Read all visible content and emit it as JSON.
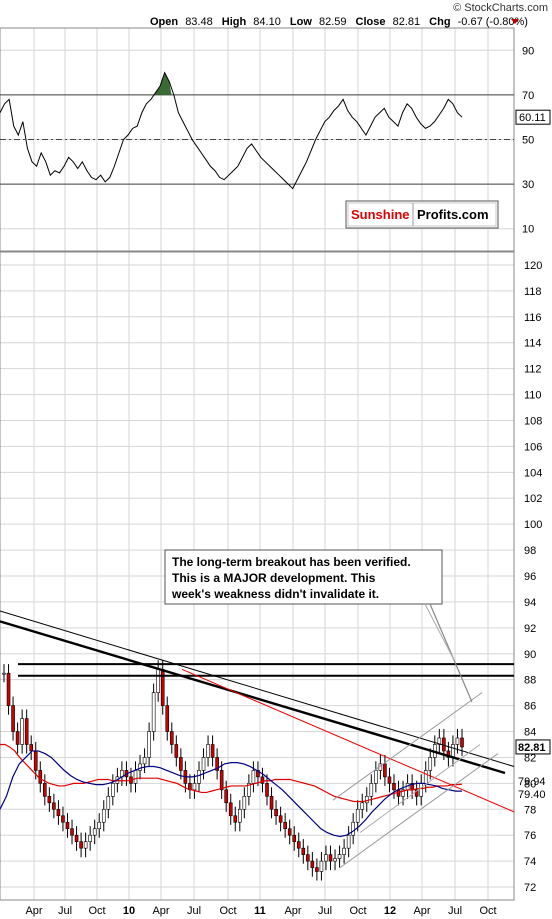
{
  "header": {
    "watermark": "© StockCharts.com",
    "open_label": "Open",
    "open": "83.48",
    "high_label": "High",
    "high": "84.10",
    "low_label": "Low",
    "low": "82.59",
    "close_label": "Close",
    "close": "82.81",
    "chg_label": "Chg",
    "chg": "-0.67 (-0.80%)",
    "chg_color": "#c00000"
  },
  "branding": {
    "part1": "Sunshine",
    "part2": "Profits.com",
    "part1_color": "#e00000",
    "part2_color": "#000000"
  },
  "annotation": [
    "The long-term breakout has been verified.",
    "This is a MAJOR development. This",
    "week's weakness didn't invalidate it."
  ],
  "chart_data": [
    {
      "type": "line",
      "panel": "indicator",
      "ylim": [
        0,
        100
      ],
      "yticks": [
        10,
        30,
        50,
        70,
        90
      ],
      "reference_lines": [
        30,
        50,
        70
      ],
      "last_value_label": "60.11",
      "series": [
        {
          "values": [
            62,
            66,
            68,
            56,
            52,
            58,
            46,
            40,
            38,
            44,
            40,
            34,
            36,
            35,
            38,
            42,
            40,
            37,
            40,
            36,
            33,
            32,
            34,
            31,
            33,
            38,
            44,
            50,
            52,
            55,
            56,
            62,
            66,
            68,
            71,
            74,
            80,
            76,
            70,
            62,
            58,
            54,
            50,
            47,
            44,
            41,
            38,
            36,
            33,
            32,
            34,
            36,
            38,
            42,
            46,
            48,
            45,
            42,
            40,
            38,
            36,
            34,
            32,
            30,
            28,
            32,
            36,
            40,
            45,
            50,
            54,
            58,
            60,
            63,
            65,
            68,
            63,
            60,
            58,
            55,
            52,
            56,
            60,
            62,
            64,
            60,
            58,
            56,
            62,
            66,
            64,
            60,
            57,
            55,
            56,
            58,
            61,
            64,
            68,
            66,
            62,
            60
          ]
        }
      ]
    },
    {
      "type": "line",
      "panel": "price",
      "ylim": [
        71,
        121
      ],
      "yticks": [
        72,
        74,
        76,
        78,
        80,
        82,
        84,
        86,
        88,
        90,
        92,
        94,
        96,
        98,
        100,
        102,
        104,
        106,
        108,
        110,
        112,
        114,
        116,
        118,
        120
      ],
      "xticks": [
        "Apr",
        "Jul",
        "Oct",
        "10",
        "Apr",
        "Jul",
        "Oct",
        "11",
        "Apr",
        "Jul",
        "Oct",
        "12",
        "Apr",
        "Jul",
        "Oct"
      ],
      "value_labels": [
        {
          "text": "82.81",
          "value": 82.81,
          "boxed": true
        },
        {
          "text": "79.94",
          "value": 79.94,
          "color": "#cc0000"
        },
        {
          "text": "79.40",
          "value": 79.4,
          "color": "#000080"
        }
      ],
      "horizontal_lines": [
        89.2,
        88.3
      ],
      "series": [
        {
          "name": "",
          "values": [
            88.5,
            86,
            84,
            83,
            85,
            83,
            82.5,
            81,
            80,
            79,
            78.5,
            78,
            77.5,
            77,
            76.5,
            76,
            75.5,
            75,
            75.5,
            76,
            76.5,
            77,
            78,
            79,
            80,
            80.5,
            81,
            80.5,
            80,
            81,
            81.5,
            82,
            84,
            87,
            88.8,
            86,
            84,
            83,
            82,
            81,
            80,
            79.5,
            80,
            81,
            82,
            83,
            82,
            81,
            79.5,
            78.5,
            77.5,
            77,
            78,
            79,
            80,
            81,
            80.5,
            80,
            79,
            78,
            77.5,
            77,
            76.5,
            76,
            75.5,
            75,
            74.5,
            74,
            73.5,
            73.2,
            74,
            74.5,
            74,
            74.2,
            74.5,
            75,
            76,
            77,
            78,
            78.5,
            79,
            80,
            81,
            81.5,
            80.5,
            80,
            79.5,
            79,
            79.5,
            80,
            79.5,
            79,
            80,
            81,
            82,
            83,
            83.5,
            82.5,
            82,
            83,
            83.5,
            82.81
          ]
        },
        {
          "name": "",
          "values": [
            83,
            83,
            82.8,
            82.5,
            82,
            81.6,
            81.2,
            80.8,
            80.4,
            80.2,
            80,
            79.9,
            79.8,
            79.8,
            79.9,
            80,
            80,
            80,
            80.1,
            80.2,
            80.3,
            80.3,
            80.3,
            80.2,
            80.2,
            80.2,
            80.2,
            80.3,
            80.4,
            80.4,
            80.4,
            80.4,
            80.4,
            80.3,
            80.2,
            80.1,
            80,
            79.8,
            79.6,
            79.5,
            79.4,
            79.3,
            79.3,
            79.4,
            79.5,
            79.6,
            79.7,
            79.8,
            79.8,
            79.8,
            79.8,
            79.9,
            80,
            80.1,
            80.2,
            80.2,
            80.3,
            80.3,
            80.3,
            80.3,
            80.2,
            80.1,
            80,
            79.9,
            79.8,
            79.6,
            79.4,
            79.2,
            79,
            78.9,
            78.8,
            78.7,
            78.6,
            78.6,
            78.6,
            78.7,
            78.8,
            78.9,
            79,
            79.1,
            79.2,
            79.3,
            79.4,
            79.5,
            79.5,
            79.6,
            79.6,
            79.7,
            79.7,
            79.8,
            79.8,
            79.8,
            79.9,
            79.9,
            79.94
          ],
          "color": "#dd0000"
        },
        {
          "name": "",
          "values": [
            78,
            79,
            80.5,
            81.5,
            82,
            82.5,
            82.5,
            82.3,
            82,
            81.5,
            81,
            80.6,
            80.3,
            80.1,
            80,
            79.9,
            79.9,
            80,
            80.2,
            80.5,
            80.8,
            81,
            81.2,
            81.3,
            81.3,
            81.2,
            81,
            80.8,
            80.6,
            80.5,
            80.5,
            80.6,
            80.8,
            81,
            81.2,
            81.5,
            81.6,
            81.6,
            81.5,
            81.3,
            81,
            80.7,
            80.3,
            79.9,
            79.5,
            79,
            78.5,
            78,
            77.5,
            77,
            76.5,
            76.2,
            76,
            75.9,
            76,
            76.3,
            76.7,
            77.2,
            77.8,
            78.3,
            78.8,
            79.2,
            79.5,
            79.7,
            79.9,
            80,
            80,
            79.9,
            79.8,
            79.6,
            79.5,
            79.4,
            79.4
          ],
          "color": "#000080"
        }
      ]
    }
  ]
}
